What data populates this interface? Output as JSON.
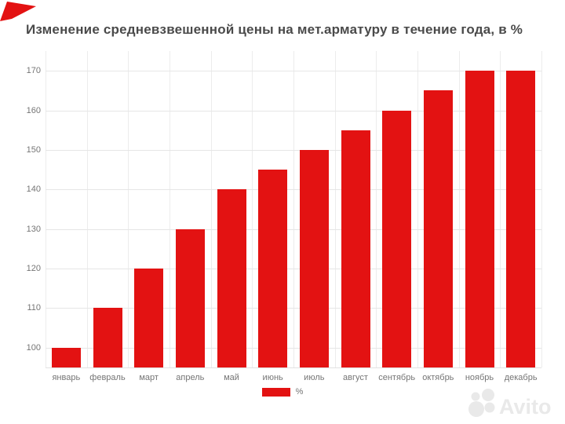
{
  "title": "Изменение средневзвешенной цены на мет.арматуру в течение года, в %",
  "chart_data": {
    "type": "bar",
    "categories": [
      "январь",
      "февраль",
      "март",
      "апрель",
      "май",
      "июнь",
      "июль",
      "август",
      "сентябрь",
      "октябрь",
      "ноябрь",
      "декабрь"
    ],
    "series": [
      {
        "name": "%",
        "values": [
          100,
          110,
          120,
          130,
          140,
          145,
          150,
          155,
          160,
          165,
          170,
          170
        ]
      }
    ],
    "title": "Изменение средневзвешенной цены на мет.арматуру в течение года, в %",
    "xlabel": "",
    "ylabel": "",
    "ylim": [
      95,
      175
    ],
    "yticks": [
      100,
      110,
      120,
      130,
      140,
      150,
      160,
      170
    ],
    "grid": true,
    "legend_position": "bottom",
    "bar_color": "#e31212"
  },
  "legend": {
    "label": "%",
    "swatch_color": "#e31212"
  },
  "watermark": {
    "brand": "Avito"
  },
  "colors": {
    "bar": "#e31212",
    "title_text": "#4a4a4a",
    "axis_text": "#757575",
    "gridline": "#e6e6e6",
    "background": "#ffffff",
    "watermark_gray": "#e9e9e9",
    "ribbon_red": "#e31212"
  }
}
